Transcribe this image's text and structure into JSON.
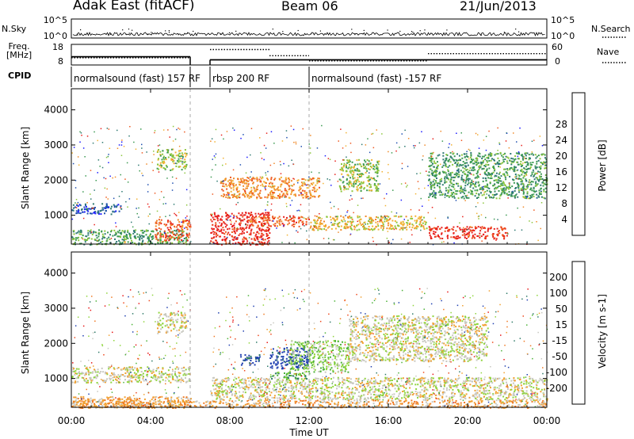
{
  "header": {
    "title": "Adak East (fitACF)",
    "beam": "Beam 06",
    "date": "21/Jun/2013"
  },
  "side_labels": {
    "nsky": "N.Sky",
    "nsearch": "N.Search",
    "freq_line1": "Freq.",
    "freq_line2": "[MHz]",
    "nave": "Nave",
    "cpid": "CPID"
  },
  "noise_panel": {
    "left_ticks": [
      "10^5",
      "10^0"
    ],
    "right_ticks": [
      "10^5",
      "10^0"
    ]
  },
  "freq_panel": {
    "left_ticks": [
      "18",
      "8"
    ],
    "right_ticks": [
      "60",
      "0"
    ],
    "freq_mhz": [
      {
        "start_h": 0,
        "end_h": 6,
        "value": 12.0
      },
      {
        "start_h": 7,
        "end_h": 24,
        "value": 10.5
      }
    ],
    "nave": [
      {
        "start_h": 0,
        "end_h": 6,
        "value": 21
      },
      {
        "start_h": 7,
        "end_h": 10,
        "value": 45
      },
      {
        "start_h": 10,
        "end_h": 12,
        "value": 27
      },
      {
        "start_h": 12,
        "end_h": 18,
        "value": 12
      },
      {
        "start_h": 18,
        "end_h": 24,
        "value": 33
      }
    ]
  },
  "cpid_segments": [
    {
      "start_h": 0,
      "end_h": 6,
      "label": "normalsound (fast) 157 RF"
    },
    {
      "start_h": 7,
      "end_h": 12,
      "label": "rbsp 200 RF"
    },
    {
      "start_h": 12,
      "end_h": 24,
      "label": "normalsound (fast) -157 RF"
    }
  ],
  "power_colorbar": {
    "label": "Power [dB]",
    "ticks": [
      "4",
      "8",
      "12",
      "16",
      "20",
      "24",
      "28"
    ],
    "colors": [
      "#1a1aff",
      "#1f50b0",
      "#2f7a72",
      "#3c9a52",
      "#8cc63c",
      "#f2b234",
      "#f08a2a",
      "#ee5a22",
      "#e8201c"
    ]
  },
  "velocity_colorbar": {
    "label": "Velocity [m s-1]",
    "ticks": [
      "200",
      "100",
      "50",
      "15",
      "-15",
      "-50",
      "-100",
      "-200"
    ],
    "colors": [
      "#2040b0",
      "#2f7a68",
      "#4cb238",
      "#8fd43c",
      "#c8c8c0",
      "#f0a030",
      "#f07a24",
      "#ee4a1e",
      "#e81818"
    ]
  },
  "x_axis_label": "Time UT",
  "y_axis_label": "Slant Range [km]",
  "chart_data": [
    {
      "type": "heatmap",
      "name": "power",
      "xlabel": "Time UT",
      "ylabel": "Slant Range [km]",
      "x_ticks": [
        "00:00",
        "04:00",
        "08:00",
        "12:00",
        "16:00",
        "20:00",
        "00:00"
      ],
      "y_ticks": [
        "1000",
        "2000",
        "3000",
        "4000"
      ],
      "xlim_hours": [
        0,
        24
      ],
      "ylim_km": [
        180,
        4600
      ],
      "color_scale": "power_dB",
      "regions": [
        {
          "t0": 0.0,
          "t1": 2.5,
          "r0": 1050,
          "r1": 1350,
          "level": 1
        },
        {
          "t0": 0.0,
          "t1": 6.0,
          "r0": 180,
          "r1": 600,
          "level": 3
        },
        {
          "t0": 4.2,
          "t1": 6.0,
          "r0": 300,
          "r1": 900,
          "level": 7
        },
        {
          "t0": 4.3,
          "t1": 5.8,
          "r0": 2300,
          "r1": 2900,
          "level": 4
        },
        {
          "t0": 7.0,
          "t1": 10.0,
          "r0": 180,
          "r1": 1100,
          "level": 8
        },
        {
          "t0": 7.5,
          "t1": 12.5,
          "r0": 1500,
          "r1": 2100,
          "level": 6
        },
        {
          "t0": 9.0,
          "t1": 12.0,
          "r0": 700,
          "r1": 1000,
          "level": 7
        },
        {
          "t0": 12.0,
          "t1": 18.0,
          "r0": 600,
          "r1": 1000,
          "level": 5
        },
        {
          "t0": 13.5,
          "t1": 15.5,
          "r0": 1700,
          "r1": 2600,
          "level": 4
        },
        {
          "t0": 18.0,
          "t1": 22.0,
          "r0": 350,
          "r1": 700,
          "level": 8
        },
        {
          "t0": 18.0,
          "t1": 24.0,
          "r0": 1500,
          "r1": 2800,
          "level": 3
        }
      ]
    },
    {
      "type": "heatmap",
      "name": "velocity",
      "xlabel": "Time UT",
      "ylabel": "Slant Range [km]",
      "x_ticks": [
        "00:00",
        "04:00",
        "08:00",
        "12:00",
        "16:00",
        "20:00",
        "00:00"
      ],
      "y_ticks": [
        "1000",
        "2000",
        "3000",
        "4000"
      ],
      "xlim_hours": [
        0,
        24
      ],
      "ylim_km": [
        180,
        4600
      ],
      "color_scale": "velocity_m_s",
      "regions": [
        {
          "t0": 0.0,
          "t1": 6.0,
          "r0": 900,
          "r1": 1350,
          "level": 4
        },
        {
          "t0": 0.0,
          "t1": 6.0,
          "r0": 180,
          "r1": 500,
          "level": 5
        },
        {
          "t0": 4.3,
          "t1": 5.8,
          "r0": 2300,
          "r1": 2900,
          "level": 4
        },
        {
          "t0": 7.0,
          "t1": 24.0,
          "r0": 400,
          "r1": 1050,
          "level": 4
        },
        {
          "t0": 8.5,
          "t1": 9.5,
          "r0": 1400,
          "r1": 1700,
          "level": 0
        },
        {
          "t0": 10.0,
          "t1": 12.0,
          "r0": 1300,
          "r1": 1900,
          "level": 0
        },
        {
          "t0": 11.0,
          "t1": 14.0,
          "r0": 1200,
          "r1": 2100,
          "level": 3
        },
        {
          "t0": 10.0,
          "t1": 12.0,
          "r0": 1000,
          "r1": 1200,
          "level": 2
        },
        {
          "t0": 14.0,
          "t1": 21.0,
          "r0": 1500,
          "r1": 2800,
          "level": 4
        },
        {
          "t0": 0.0,
          "t1": 24.0,
          "r0": 180,
          "r1": 400,
          "level": 5
        }
      ]
    }
  ]
}
